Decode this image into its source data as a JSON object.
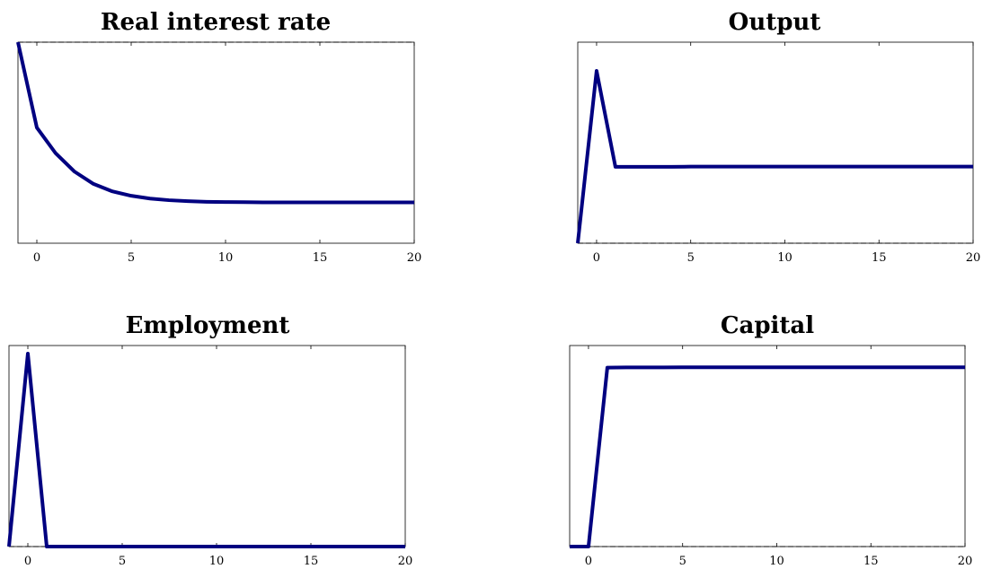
{
  "colors": {
    "series": "#000080",
    "axes": "#000000",
    "reference_line": "#000000"
  },
  "chart_data": [
    {
      "type": "line",
      "title": "Real interest rate",
      "xlabel": "",
      "ylabel": "",
      "xlim": [
        -1,
        20
      ],
      "ylim": [
        0,
        1
      ],
      "x_ticks": [
        0,
        5,
        10,
        15,
        20
      ],
      "y_ticks": [],
      "grid": false,
      "reference_line": {
        "y": 1,
        "style": "dashed"
      },
      "x": [
        -1,
        0,
        1,
        2,
        3,
        4,
        5,
        6,
        7,
        8,
        9,
        10,
        11,
        12,
        13,
        14,
        15,
        16,
        17,
        18,
        19,
        20
      ],
      "series": [
        {
          "values": [
            1.0,
            0.575,
            0.447,
            0.356,
            0.295,
            0.258,
            0.236,
            0.222,
            0.214,
            0.209,
            0.206,
            0.205,
            0.204,
            0.203,
            0.203,
            0.203,
            0.203,
            0.203,
            0.203,
            0.203,
            0.203,
            0.203
          ]
        }
      ]
    },
    {
      "type": "line",
      "title": "Output",
      "xlabel": "",
      "ylabel": "",
      "xlim": [
        -1,
        20
      ],
      "ylim": [
        0,
        1
      ],
      "x_ticks": [
        0,
        5,
        10,
        15,
        20
      ],
      "y_ticks": [],
      "grid": false,
      "reference_line": {
        "y": 0,
        "style": "dashed"
      },
      "x": [
        -1,
        0,
        1,
        2,
        3,
        4,
        5,
        6,
        7,
        8,
        9,
        10,
        11,
        12,
        13,
        14,
        15,
        16,
        17,
        18,
        19,
        20
      ],
      "series": [
        {
          "values": [
            0.0,
            0.857,
            0.38,
            0.38,
            0.38,
            0.38,
            0.381,
            0.381,
            0.381,
            0.381,
            0.381,
            0.381,
            0.381,
            0.381,
            0.381,
            0.381,
            0.381,
            0.381,
            0.381,
            0.381,
            0.381,
            0.381
          ]
        }
      ]
    },
    {
      "type": "line",
      "title": "Employment",
      "xlabel": "",
      "ylabel": "",
      "xlim": [
        -1,
        20
      ],
      "ylim": [
        0,
        1
      ],
      "x_ticks": [
        0,
        5,
        10,
        15,
        20
      ],
      "y_ticks": [],
      "grid": false,
      "reference_line": {
        "y": 0,
        "style": "dashed"
      },
      "x": [
        -1,
        0,
        1,
        2,
        3,
        4,
        5,
        6,
        7,
        8,
        9,
        10,
        11,
        12,
        13,
        14,
        15,
        16,
        17,
        18,
        19,
        20
      ],
      "series": [
        {
          "values": [
            0.0,
            0.96,
            0.0,
            0.0,
            0.0,
            0.0,
            0.0,
            0.0,
            0.0,
            0.0,
            0.0,
            0.0,
            0.0,
            0.0,
            0.0,
            0.0,
            0.0,
            0.0,
            0.0,
            0.0,
            0.0,
            0.0
          ]
        }
      ]
    },
    {
      "type": "line",
      "title": "Capital",
      "xlabel": "",
      "ylabel": "",
      "xlim": [
        -1,
        20
      ],
      "ylim": [
        0,
        1
      ],
      "x_ticks": [
        0,
        5,
        10,
        15,
        20
      ],
      "y_ticks": [],
      "grid": false,
      "reference_line": {
        "y": 0,
        "style": "dashed"
      },
      "x": [
        -1,
        0,
        1,
        2,
        3,
        4,
        5,
        6,
        7,
        8,
        9,
        10,
        11,
        12,
        13,
        14,
        15,
        16,
        17,
        18,
        19,
        20
      ],
      "series": [
        {
          "values": [
            0.0,
            0.0,
            0.89,
            0.891,
            0.891,
            0.891,
            0.892,
            0.892,
            0.892,
            0.892,
            0.892,
            0.892,
            0.892,
            0.892,
            0.892,
            0.892,
            0.892,
            0.892,
            0.892,
            0.892,
            0.892,
            0.892
          ]
        }
      ]
    }
  ]
}
